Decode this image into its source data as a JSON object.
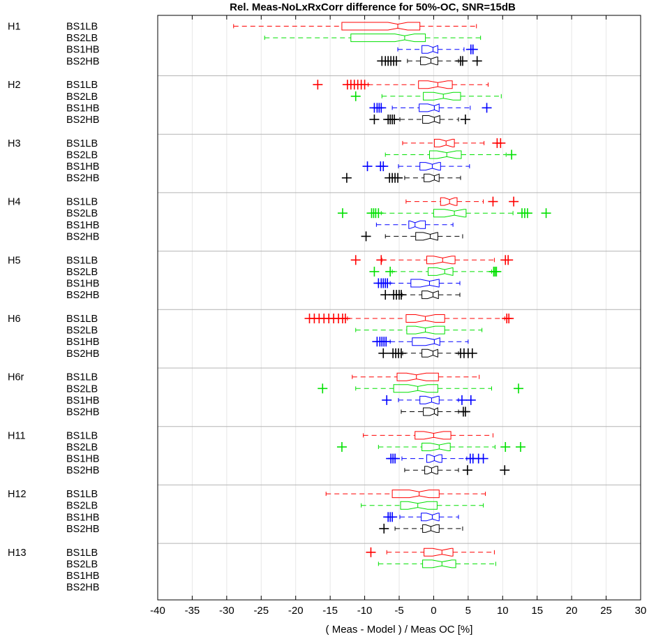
{
  "chart_data": {
    "type": "boxplot",
    "orientation": "horizontal",
    "title": "Rel. Meas-NoLxRxCorr difference for 50%-OC, SNR=15dB",
    "xlabel": "( Meas - Model ) / Meas OC [%]",
    "xlim": [
      -40,
      30
    ],
    "xticks": [
      "-40",
      "-35",
      "-30",
      "-25",
      "-20",
      "-15",
      "-10",
      "-5",
      "0",
      "5",
      "10",
      "15",
      "20",
      "25",
      "30"
    ],
    "grid": true,
    "series_colors": {
      "BS1LB": "#ff0000",
      "BS2LB": "#00e000",
      "BS1HB": "#0000ff",
      "BS2HB": "#000000"
    },
    "groups": [
      {
        "name": "H1",
        "rows": [
          {
            "label": "BS1LB",
            "wlo": -29,
            "q1": -13.3,
            "med": -5.2,
            "q3": -2.0,
            "whi": 6.2,
            "out": []
          },
          {
            "label": "BS2LB",
            "wlo": -24.5,
            "q1": -12.0,
            "med": -4.2,
            "q3": -1.2,
            "whi": 6.8,
            "out": []
          },
          {
            "label": "BS1HB",
            "wlo": -5.2,
            "q1": -1.7,
            "med": -0.1,
            "q3": 0.6,
            "whi": 4.4,
            "out": [
              5.4,
              5.7
            ]
          },
          {
            "label": "BS2HB",
            "wlo": -3.8,
            "q1": -1.9,
            "med": -0.4,
            "q3": 0.6,
            "whi": 3.6,
            "out": [
              -7.5,
              -7,
              -6.6,
              -6.2,
              -5.8,
              -5.4,
              3.9,
              4.2,
              6.3
            ]
          }
        ]
      },
      {
        "name": "H2",
        "rows": [
          {
            "label": "BS1LB",
            "wlo": -9.5,
            "q1": -2.2,
            "med": 0.6,
            "q3": 2.7,
            "whi": 7.9,
            "out": [
              -16.8,
              -12.5,
              -12.0,
              -11.5,
              -11.0,
              -10.5,
              -10.0
            ]
          },
          {
            "label": "BS2LB",
            "wlo": -7.5,
            "q1": -1.5,
            "med": 1.4,
            "q3": 3.9,
            "whi": 9.8,
            "out": [
              -11.3
            ]
          },
          {
            "label": "BS1HB",
            "wlo": -6.0,
            "q1": -2.1,
            "med": 0.1,
            "q3": 0.8,
            "whi": 5.3,
            "out": [
              -8.6,
              -8.2,
              -7.9,
              -7.6,
              7.7
            ]
          },
          {
            "label": "BS2HB",
            "wlo": -4.9,
            "q1": -1.6,
            "med": 0.1,
            "q3": 0.9,
            "whi": 3.6,
            "out": [
              -8.6,
              -6.6,
              -6.3,
              -6.0,
              -5.7,
              4.6
            ]
          }
        ]
      },
      {
        "name": "H3",
        "rows": [
          {
            "label": "BS1LB",
            "wlo": -4.5,
            "q1": 0.1,
            "med": 1.8,
            "q3": 3.0,
            "whi": 7.3,
            "out": [
              9.2,
              9.7
            ]
          },
          {
            "label": "BS2LB",
            "wlo": -7.0,
            "q1": -0.6,
            "med": 1.9,
            "q3": 4.0,
            "whi": 10.5,
            "out": [
              11.3
            ]
          },
          {
            "label": "BS1HB",
            "wlo": -5.1,
            "q1": -2.0,
            "med": -0.2,
            "q3": 1.0,
            "whi": 5.2,
            "out": [
              -9.6,
              -7.7,
              -7.3
            ]
          },
          {
            "label": "BS2HB",
            "wlo": -4.2,
            "q1": -1.4,
            "med": 0.1,
            "q3": 0.8,
            "whi": 3.9,
            "out": [
              -12.6,
              -6.4,
              -6.0,
              -5.6,
              -5.2
            ]
          }
        ]
      },
      {
        "name": "H4",
        "rows": [
          {
            "label": "BS1LB",
            "wlo": -4.0,
            "q1": 1.0,
            "med": 2.3,
            "q3": 3.4,
            "whi": 7.2,
            "out": [
              8.6,
              11.6
            ]
          },
          {
            "label": "BS2LB",
            "wlo": -7.6,
            "q1": 0.0,
            "med": 3.0,
            "q3": 4.7,
            "whi": 11.5,
            "out": [
              -13.2,
              -9.0,
              -8.7,
              -8.4,
              -8.0,
              12.8,
              13.2,
              13.6,
              16.3
            ]
          },
          {
            "label": "BS1HB",
            "wlo": -8.3,
            "q1": -3.6,
            "med": -2.7,
            "q3": -1.2,
            "whi": 2.8,
            "out": []
          },
          {
            "label": "BS2HB",
            "wlo": -7.0,
            "q1": -2.6,
            "med": -0.5,
            "q3": 0.6,
            "whi": 4.2,
            "out": [
              -9.8
            ]
          }
        ]
      },
      {
        "name": "H5",
        "rows": [
          {
            "label": "BS1LB",
            "wlo": -7.5,
            "q1": -1.0,
            "med": 1.3,
            "q3": 3.1,
            "whi": 8.8,
            "out": [
              -11.3,
              -7.6,
              10.4,
              10.8
            ]
          },
          {
            "label": "BS2LB",
            "wlo": -6.0,
            "q1": -0.8,
            "med": 1.6,
            "q3": 2.8,
            "whi": 8.4,
            "out": [
              -8.6,
              -6.3,
              8.7,
              8.9,
              9.1
            ]
          },
          {
            "label": "BS1HB",
            "wlo": -6.3,
            "q1": -3.3,
            "med": -0.6,
            "q3": 0.8,
            "whi": 3.8,
            "out": [
              -8.0,
              -7.6,
              -7.3,
              -7.0,
              -6.7
            ]
          },
          {
            "label": "BS2HB",
            "wlo": -4.6,
            "q1": -1.7,
            "med": -0.1,
            "q3": 0.7,
            "whi": 3.8,
            "out": [
              -7.0,
              -5.8,
              -5.4,
              -5.0,
              -4.7
            ]
          }
        ]
      },
      {
        "name": "H6",
        "rows": [
          {
            "label": "BS1LB",
            "wlo": -12.5,
            "q1": -4.0,
            "med": -1.2,
            "q3": 1.6,
            "whi": 10.3,
            "out": [
              -18.0,
              -17.3,
              -16.6,
              -15.9,
              -15.2,
              -14.5,
              -13.8,
              -13.2,
              -12.8,
              10.6,
              10.9
            ]
          },
          {
            "label": "BS2LB",
            "wlo": -11.3,
            "q1": -3.9,
            "med": -1.2,
            "q3": 1.6,
            "whi": 7.0,
            "out": []
          },
          {
            "label": "BS1HB",
            "wlo": -6.3,
            "q1": -3.1,
            "med": 0.1,
            "q3": 0.9,
            "whi": 5.0,
            "out": [
              -8.2,
              -7.8,
              -7.5,
              -7.2,
              -6.9
            ]
          },
          {
            "label": "BS2HB",
            "wlo": -4.5,
            "q1": -1.7,
            "med": -0.1,
            "q3": 0.6,
            "whi": 3.6,
            "out": [
              -7.3,
              -5.9,
              -5.5,
              -5.1,
              -4.7,
              3.9,
              4.4,
              5.0,
              5.6
            ]
          }
        ]
      },
      {
        "name": "H6r",
        "rows": [
          {
            "label": "BS1LB",
            "wlo": -11.8,
            "q1": -5.3,
            "med": -2.5,
            "q3": 0.7,
            "whi": 6.6,
            "out": []
          },
          {
            "label": "BS2LB",
            "wlo": -11.3,
            "q1": -5.8,
            "med": -2.3,
            "q3": 0.6,
            "whi": 8.4,
            "out": [
              -16.1,
              12.3
            ]
          },
          {
            "label": "BS1HB",
            "wlo": -5.1,
            "q1": -2.0,
            "med": -0.3,
            "q3": 0.8,
            "whi": 3.6,
            "out": [
              -6.8,
              4.1,
              5.4
            ]
          },
          {
            "label": "BS2HB",
            "wlo": -4.7,
            "q1": -1.5,
            "med": 0.1,
            "q3": 0.6,
            "whi": 3.6,
            "out": [
              4.3,
              4.6
            ]
          }
        ]
      },
      {
        "name": "H11",
        "rows": [
          {
            "label": "BS1LB",
            "wlo": -10.2,
            "q1": -2.7,
            "med": 0.0,
            "q3": 2.5,
            "whi": 8.6,
            "out": []
          },
          {
            "label": "BS2LB",
            "wlo": -8.0,
            "q1": -1.7,
            "med": 0.8,
            "q3": 2.4,
            "whi": 8.9,
            "out": [
              -13.3,
              10.4,
              12.6
            ]
          },
          {
            "label": "BS1HB",
            "wlo": -4.6,
            "q1": -1.0,
            "med": 0.1,
            "q3": 1.2,
            "whi": 4.8,
            "out": [
              -6.2,
              -5.9,
              -5.6,
              5.3,
              5.7,
              6.5,
              7.2
            ]
          },
          {
            "label": "BS2HB",
            "wlo": -4.2,
            "q1": -1.3,
            "med": -0.3,
            "q3": 0.6,
            "whi": 3.6,
            "out": [
              4.9,
              10.3
            ]
          }
        ]
      },
      {
        "name": "H12",
        "rows": [
          {
            "label": "BS1LB",
            "wlo": -15.6,
            "q1": -6.0,
            "med": -2.1,
            "q3": 0.8,
            "whi": 7.5,
            "out": []
          },
          {
            "label": "BS2LB",
            "wlo": -10.5,
            "q1": -4.8,
            "med": -2.3,
            "q3": 0.5,
            "whi": 7.2,
            "out": []
          },
          {
            "label": "BS1HB",
            "wlo": -4.9,
            "q1": -1.8,
            "med": -0.2,
            "q3": 0.8,
            "whi": 3.6,
            "out": [
              -6.6,
              -6.3,
              -6.0
            ]
          },
          {
            "label": "BS2HB",
            "wlo": -5.6,
            "q1": -1.6,
            "med": -0.4,
            "q3": 0.8,
            "whi": 4.2,
            "out": [
              -7.2
            ]
          }
        ]
      },
      {
        "name": "H13",
        "rows": [
          {
            "label": "BS1LB",
            "wlo": -6.8,
            "q1": -1.4,
            "med": 1.2,
            "q3": 2.8,
            "whi": 8.8,
            "out": [
              -9.1
            ]
          },
          {
            "label": "BS2LB",
            "wlo": -8.0,
            "q1": -1.6,
            "med": 1.2,
            "q3": 3.2,
            "whi": 9.0,
            "out": []
          },
          {
            "label": "BS1HB",
            "out": []
          },
          {
            "label": "BS2HB",
            "out": []
          }
        ]
      }
    ]
  }
}
